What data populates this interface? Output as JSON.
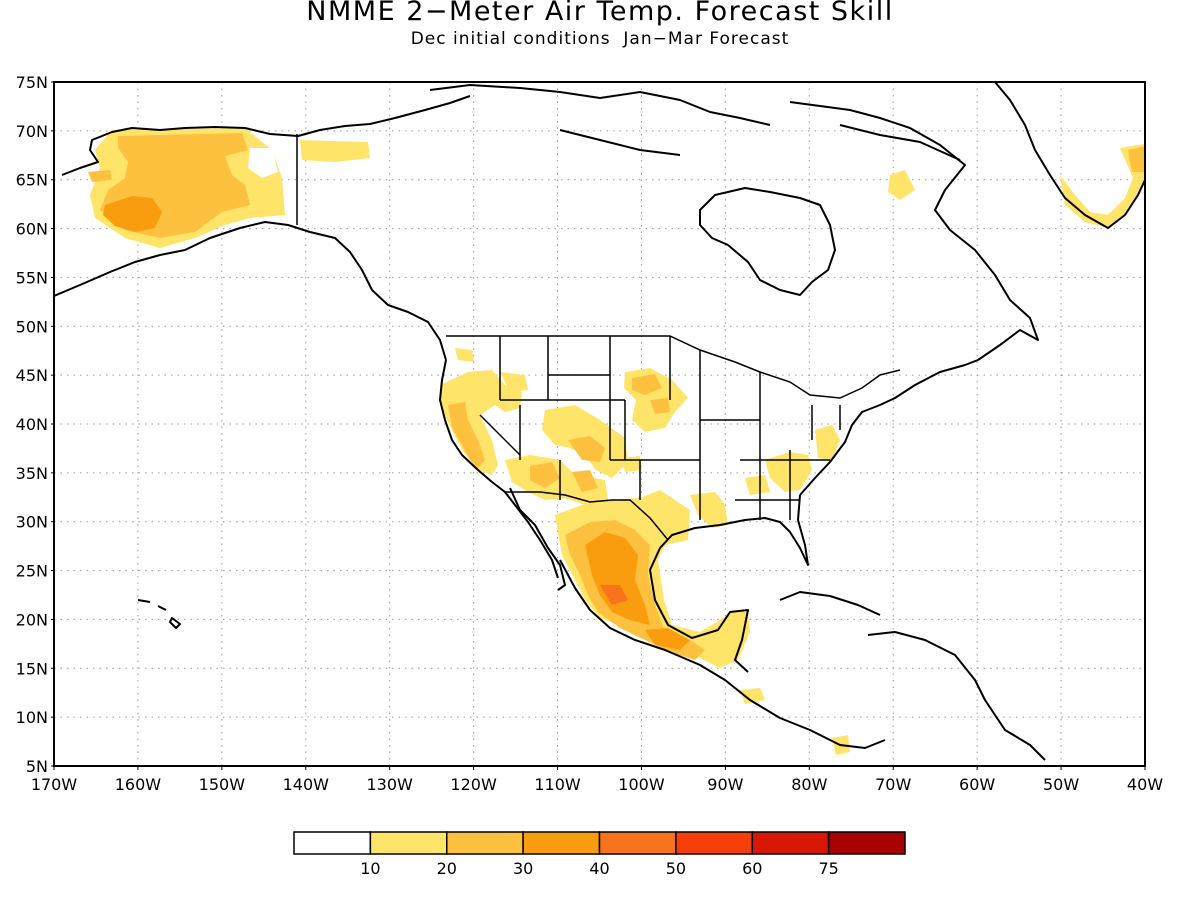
{
  "title": "NMME 2−Meter Air Temp. Forecast Skill",
  "subtitle": "Dec initial conditions  Jan−Mar Forecast",
  "axes": {
    "lat_labels": [
      "75N",
      "70N",
      "65N",
      "60N",
      "55N",
      "50N",
      "45N",
      "40N",
      "35N",
      "30N",
      "25N",
      "20N",
      "15N",
      "10N",
      "5N"
    ],
    "lon_labels": [
      "170W",
      "160W",
      "150W",
      "140W",
      "130W",
      "120W",
      "110W",
      "100W",
      "90W",
      "80W",
      "70W",
      "60W",
      "50W",
      "40W"
    ],
    "lat_range": [
      5,
      75
    ],
    "lon_range": [
      -170,
      -40
    ],
    "grid": "dotted"
  },
  "colorbar": {
    "colors": [
      "#ffffff",
      "#ffe46a",
      "#fdc13f",
      "#f99d0f",
      "#f7741c",
      "#f63f08",
      "#d71703",
      "#a50201"
    ],
    "labels": [
      "10",
      "20",
      "30",
      "40",
      "50",
      "60",
      "75"
    ]
  },
  "chart_data": {
    "type": "heatmap",
    "variable": "2-meter air temperature forecast skill",
    "regions": [
      {
        "region": "Alaska",
        "values": [
          20,
          30,
          40
        ]
      },
      {
        "region": "Yukon coast",
        "values": [
          10
        ]
      },
      {
        "region": "Pacific Northwest",
        "values": [
          10,
          20
        ]
      },
      {
        "region": "California",
        "values": [
          10,
          20,
          30
        ]
      },
      {
        "region": "Great Basin / Southwest",
        "values": [
          10,
          20
        ]
      },
      {
        "region": "Central Rockies",
        "values": [
          10,
          20,
          30
        ]
      },
      {
        "region": "Northern Plains",
        "values": [
          10,
          20
        ]
      },
      {
        "region": "Southern Plains / Texas",
        "values": [
          10
        ]
      },
      {
        "region": "Louisiana",
        "values": [
          10
        ]
      },
      {
        "region": "Southeast US",
        "values": [
          10
        ]
      },
      {
        "region": "Mexico",
        "values": [
          10,
          20,
          30,
          40,
          50
        ]
      },
      {
        "region": "Central America",
        "values": [
          10,
          20,
          30
        ]
      },
      {
        "region": "Northern Quebec",
        "values": [
          10
        ]
      },
      {
        "region": "Greenland",
        "values": [
          10,
          20
        ]
      }
    ]
  }
}
